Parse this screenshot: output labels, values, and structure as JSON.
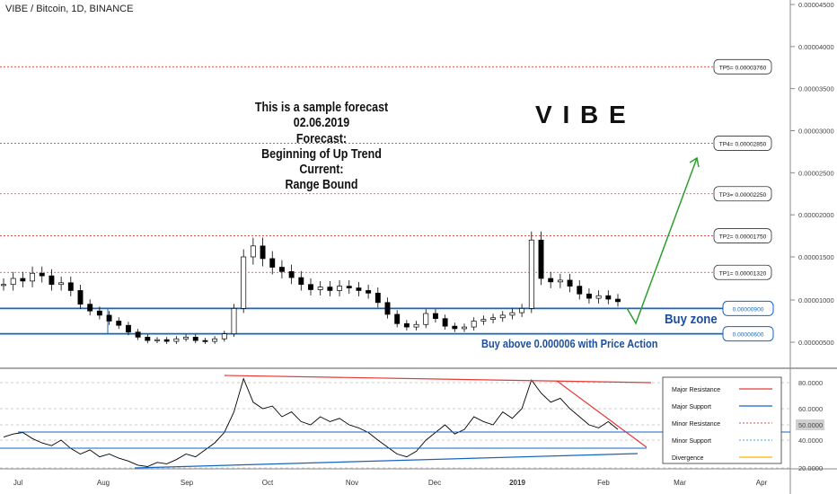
{
  "header": {
    "symbol": "VIBE / Bitcoin, 1D, BINANCE"
  },
  "forecast": {
    "lines": [
      "This is a sample forecast",
      "02.06.2019",
      "Forecast:",
      "Beginning of Up Trend",
      "Current:",
      "Range Bound"
    ],
    "brand": "V I B E"
  },
  "annotations": {
    "buy_zone": "Buy zone",
    "buy_note": "Buy above 0.000006 with Price Action"
  },
  "colors": {
    "resistance": "#e53935",
    "support": "#1565c0",
    "target_arrow": "#2e9e2e",
    "candle": "#000000",
    "oscillator": "#000000",
    "divergence": "#ffb300"
  },
  "chart_data": [
    {
      "type": "candlestick",
      "ylim": [
        3e-06,
        4.5e-06
      ],
      "y_ticks": [
        {
          "label": "0.00004500",
          "v": 4.5e-05
        },
        {
          "label": "0.00004000",
          "v": 4e-05
        },
        {
          "label": "0.00003500",
          "v": 3.5e-05
        },
        {
          "label": "0.00003000",
          "v": 3e-05
        },
        {
          "label": "0.00002500",
          "v": 2.5e-05
        },
        {
          "label": "0.00002000",
          "v": 2e-05
        },
        {
          "label": "0.00001500",
          "v": 1.5e-05
        },
        {
          "label": "0.00001000",
          "v": 1e-05
        },
        {
          "label": "0.00000500",
          "v": 5e-06
        }
      ],
      "x_ticks": [
        "Jul",
        "Aug",
        "Sep",
        "Oct",
        "Nov",
        "Dec",
        "2019",
        "Feb",
        "Mar",
        "Apr"
      ],
      "targets": [
        {
          "label": "TP5= 0.00003760",
          "v": 3.76e-05
        },
        {
          "label": "TP4= 0.00002850",
          "v": 2.85e-05
        },
        {
          "label": "TP3= 0.00002250",
          "v": 2.25e-05
        },
        {
          "label": "TP2= 0.00001750",
          "v": 1.75e-05
        },
        {
          "label": "TP1= 0.00001320",
          "v": 1.32e-05
        }
      ],
      "zone": [
        {
          "label": "0.00000900",
          "v": 9e-06
        },
        {
          "label": "0.00000600",
          "v": 6e-06
        }
      ],
      "series": [
        {
          "name": "",
          "values": [
            1.18e-05,
            1.25e-05,
            1.22e-05,
            1.31e-05,
            1.28e-05,
            1.18e-05,
            1.2e-05,
            1.11e-05,
            9.5e-06,
            8.7e-06,
            8.2e-06,
            7.5e-06,
            7e-06,
            6.2e-06,
            5.6e-06,
            5.2e-06,
            5.3e-06,
            5.1e-06,
            5.4e-06,
            5.6e-06,
            5.2e-06,
            5.1e-06,
            5.4e-06,
            6e-06,
            9e-06,
            1.5e-05,
            1.63e-05,
            1.48e-05,
            1.38e-05,
            1.33e-05,
            1.26e-05,
            1.18e-05,
            1.12e-05,
            1.15e-05,
            1.11e-05,
            1.16e-05,
            1.14e-05,
            1.11e-05,
            1.08e-05,
            9.7e-06,
            8.3e-06,
            7.2e-06,
            6.8e-06,
            7.1e-06,
            8.4e-06,
            7.8e-06,
            6.9e-06,
            6.6e-06,
            6.8e-06,
            7.5e-06,
            7.7e-06,
            7.9e-06,
            8.2e-06,
            8.5e-06,
            9e-06,
            1.7e-05,
            1.25e-05,
            1.21e-05,
            1.23e-05,
            1.16e-05,
            1.07e-05,
            1.02e-05,
            1.05e-05,
            1.01e-05,
            9.8e-06
          ]
        }
      ]
    },
    {
      "type": "line",
      "ylim": [
        15,
        85
      ],
      "y_ticks": [
        {
          "label": "80.0000",
          "v": 80
        },
        {
          "label": "60.0000",
          "v": 60
        },
        {
          "label": "50.0000",
          "v": 50
        },
        {
          "label": "40.0000",
          "v": 40
        },
        {
          "label": "20.0000",
          "v": 20
        }
      ],
      "series": [
        {
          "name": "",
          "values": [
            42,
            44,
            45,
            41,
            38,
            36,
            40,
            34,
            30,
            33,
            28,
            30,
            27,
            25,
            22,
            21,
            24,
            23,
            26,
            30,
            28,
            33,
            38,
            45,
            58,
            83,
            65,
            60,
            62,
            55,
            58,
            52,
            50,
            55,
            52,
            54,
            50,
            48,
            45,
            40,
            35,
            30,
            28,
            32,
            40,
            45,
            50,
            44,
            47,
            55,
            52,
            50,
            58,
            54,
            60,
            82,
            72,
            65,
            68,
            60,
            55,
            50,
            48,
            52,
            47
          ]
        }
      ],
      "legend": [
        {
          "name": "Major Resistance",
          "color": "#e53935",
          "style": "solid"
        },
        {
          "name": "Major Support",
          "color": "#1565c0",
          "style": "solid"
        },
        {
          "name": "Minor Resistance",
          "color": "#e57373",
          "style": "dotted"
        },
        {
          "name": "Minor Support",
          "color": "#64b5f6",
          "style": "dotted"
        },
        {
          "name": "Divergence",
          "color": "#ffb300",
          "style": "solid"
        }
      ]
    }
  ]
}
